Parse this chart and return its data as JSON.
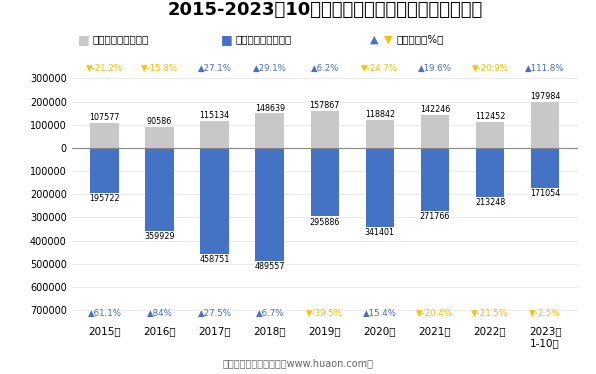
{
  "title": "2015-2023年10月大连大窑湾综合保税区进、出口额",
  "years": [
    "2015年",
    "2016年",
    "2017年",
    "2018年",
    "2019年",
    "2020年",
    "2021年",
    "2022年",
    "2023年\n1-10月"
  ],
  "export_values": [
    107577,
    90586,
    115134,
    148639,
    157867,
    118842,
    142246,
    112452,
    197984
  ],
  "import_values": [
    195722,
    359929,
    458751,
    489557,
    295886,
    341401,
    271766,
    213248,
    171054
  ],
  "export_growth": [
    "-21.2%",
    "-15.8%",
    "27.1%",
    "29.1%",
    "6.2%",
    "-24.7%",
    "19.6%",
    "-20.9%",
    "111.8%"
  ],
  "import_growth": [
    "61.1%",
    "84%",
    "27.5%",
    "6.7%",
    "-39.5%",
    "15.4%",
    "-20.4%",
    "-21.5%",
    "-2.5%"
  ],
  "export_growth_up": [
    false,
    false,
    true,
    true,
    true,
    false,
    true,
    false,
    true
  ],
  "import_growth_up": [
    true,
    true,
    true,
    true,
    false,
    true,
    false,
    false,
    false
  ],
  "export_color": "#c8c8c8",
  "import_color": "#4472c4",
  "up_color_export": "#4472c4",
  "down_color_export": "#ffc000",
  "up_color_import": "#4472c4",
  "down_color_import": "#ffc000",
  "title_fontsize": 13,
  "footer": "制图：华经产业研究院（www.huaon.com）",
  "legend_export": "出口总额（万美元）",
  "legend_import": "进口总额（万美元）",
  "legend_growth": "同比增速（%）",
  "yticks": [
    -700000,
    -600000,
    -500000,
    -400000,
    -300000,
    -200000,
    -100000,
    0,
    100000,
    200000,
    300000
  ],
  "yticklabels": [
    "700000",
    "600000",
    "500000",
    "400000",
    "300000",
    "200000",
    "100000",
    "0",
    "100000",
    "200000",
    "300000"
  ],
  "ylim": [
    -750000,
    380000
  ]
}
